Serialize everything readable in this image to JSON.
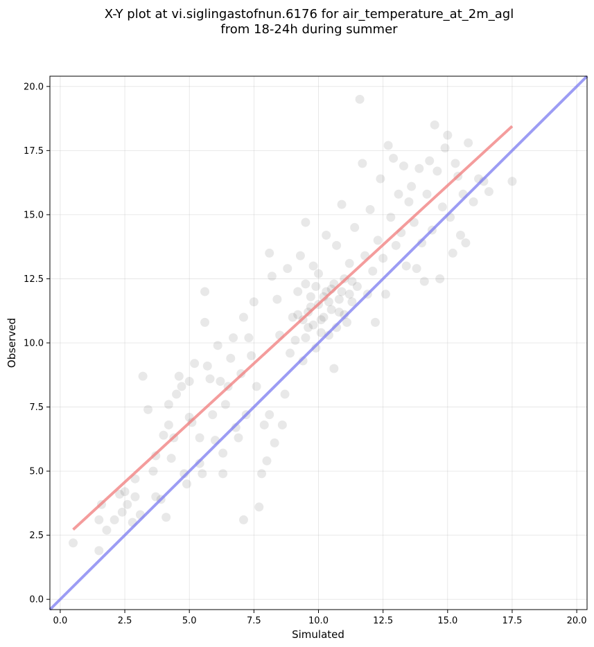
{
  "chart_data": {
    "type": "scatter",
    "title_line1": "X-Y plot at vi.siglingastofnun.6176 for air_temperature_at_2m_agl",
    "title_line2": "from 18-24h during summer",
    "xlabel": "Simulated",
    "ylabel": "Observed",
    "xlim": [
      -0.4,
      20.4
    ],
    "ylim": [
      -0.4,
      20.4
    ],
    "xticks": [
      0.0,
      2.5,
      5.0,
      7.5,
      10.0,
      12.5,
      15.0,
      17.5,
      20.0
    ],
    "yticks": [
      0.0,
      2.5,
      5.0,
      7.5,
      10.0,
      12.5,
      15.0,
      17.5,
      20.0
    ],
    "xtick_labels": [
      "0.0",
      "2.5",
      "5.0",
      "7.5",
      "10.0",
      "12.5",
      "15.0",
      "17.5",
      "20.0"
    ],
    "ytick_labels": [
      "0.0",
      "2.5",
      "5.0",
      "7.5",
      "10.0",
      "12.5",
      "15.0",
      "17.5",
      "20.0"
    ],
    "grid": true,
    "point_color": "#000000",
    "point_alpha": 0.09,
    "series": [
      {
        "points": [
          [
            0.5,
            2.2
          ],
          [
            1.5,
            1.9
          ],
          [
            1.5,
            3.1
          ],
          [
            1.8,
            2.7
          ],
          [
            1.6,
            3.7
          ],
          [
            2.1,
            3.1
          ],
          [
            2.4,
            3.4
          ],
          [
            2.6,
            3.7
          ],
          [
            2.8,
            3.0
          ],
          [
            2.3,
            4.1
          ],
          [
            2.5,
            4.2
          ],
          [
            2.9,
            4.0
          ],
          [
            2.9,
            4.7
          ],
          [
            3.1,
            3.3
          ],
          [
            3.2,
            8.7
          ],
          [
            3.4,
            7.4
          ],
          [
            3.6,
            5.0
          ],
          [
            3.7,
            4.0
          ],
          [
            3.9,
            3.9
          ],
          [
            3.7,
            5.6
          ],
          [
            4.0,
            6.4
          ],
          [
            4.1,
            3.2
          ],
          [
            4.2,
            6.8
          ],
          [
            4.2,
            7.6
          ],
          [
            4.3,
            5.5
          ],
          [
            4.5,
            8.0
          ],
          [
            4.6,
            8.7
          ],
          [
            4.7,
            8.3
          ],
          [
            4.4,
            6.3
          ],
          [
            4.8,
            4.9
          ],
          [
            4.9,
            4.5
          ],
          [
            5.0,
            7.1
          ],
          [
            5.1,
            6.9
          ],
          [
            5.0,
            8.5
          ],
          [
            5.2,
            9.2
          ],
          [
            5.4,
            6.3
          ],
          [
            5.4,
            5.3
          ],
          [
            5.5,
            4.9
          ],
          [
            5.6,
            12.0
          ],
          [
            5.6,
            10.8
          ],
          [
            5.7,
            9.1
          ],
          [
            5.8,
            8.6
          ],
          [
            5.9,
            7.2
          ],
          [
            6.0,
            6.2
          ],
          [
            6.1,
            9.9
          ],
          [
            6.2,
            8.5
          ],
          [
            6.3,
            4.9
          ],
          [
            6.3,
            5.7
          ],
          [
            6.4,
            7.6
          ],
          [
            6.5,
            8.3
          ],
          [
            6.6,
            9.4
          ],
          [
            6.7,
            10.2
          ],
          [
            6.8,
            6.7
          ],
          [
            6.9,
            6.3
          ],
          [
            7.0,
            8.8
          ],
          [
            7.1,
            11.0
          ],
          [
            7.1,
            3.1
          ],
          [
            7.2,
            7.2
          ],
          [
            7.3,
            10.2
          ],
          [
            7.4,
            9.5
          ],
          [
            7.5,
            11.6
          ],
          [
            7.6,
            8.3
          ],
          [
            7.7,
            3.6
          ],
          [
            7.8,
            4.9
          ],
          [
            7.9,
            6.8
          ],
          [
            8.0,
            5.4
          ],
          [
            8.1,
            13.5
          ],
          [
            8.1,
            7.2
          ],
          [
            8.2,
            12.6
          ],
          [
            8.3,
            6.1
          ],
          [
            8.4,
            11.7
          ],
          [
            8.5,
            10.3
          ],
          [
            8.6,
            6.8
          ],
          [
            8.7,
            8.0
          ],
          [
            8.8,
            12.9
          ],
          [
            8.9,
            9.6
          ],
          [
            9.0,
            11.0
          ],
          [
            9.1,
            10.1
          ],
          [
            9.2,
            12.0
          ],
          [
            9.3,
            13.4
          ],
          [
            9.4,
            9.3
          ],
          [
            9.5,
            12.3
          ],
          [
            9.5,
            14.7
          ],
          [
            9.6,
            10.6
          ],
          [
            9.7,
            11.4
          ],
          [
            9.8,
            13.0
          ],
          [
            9.9,
            9.8
          ],
          [
            10.0,
            12.7
          ],
          [
            10.1,
            10.9
          ],
          [
            10.2,
            11.8
          ],
          [
            10.3,
            14.2
          ],
          [
            10.4,
            10.3
          ],
          [
            10.5,
            12.1
          ],
          [
            10.6,
            9.0
          ],
          [
            10.7,
            13.8
          ],
          [
            10.8,
            11.2
          ],
          [
            10.9,
            15.4
          ],
          [
            11.0,
            12.5
          ],
          [
            11.1,
            10.8
          ],
          [
            11.2,
            13.1
          ],
          [
            11.3,
            11.6
          ],
          [
            11.4,
            14.5
          ],
          [
            11.5,
            12.2
          ],
          [
            11.6,
            19.5
          ],
          [
            11.7,
            17.0
          ],
          [
            11.8,
            13.4
          ],
          [
            11.9,
            11.9
          ],
          [
            12.0,
            15.2
          ],
          [
            12.1,
            12.8
          ],
          [
            12.2,
            10.8
          ],
          [
            12.3,
            14.0
          ],
          [
            12.4,
            16.4
          ],
          [
            12.5,
            13.3
          ],
          [
            12.6,
            11.9
          ],
          [
            12.7,
            17.7
          ],
          [
            12.8,
            14.9
          ],
          [
            12.9,
            17.2
          ],
          [
            13.0,
            13.8
          ],
          [
            13.1,
            15.8
          ],
          [
            13.2,
            14.3
          ],
          [
            13.3,
            16.9
          ],
          [
            13.4,
            13.0
          ],
          [
            13.5,
            15.5
          ],
          [
            13.6,
            16.1
          ],
          [
            13.7,
            14.7
          ],
          [
            13.8,
            12.9
          ],
          [
            13.9,
            16.8
          ],
          [
            14.0,
            13.9
          ],
          [
            14.1,
            12.4
          ],
          [
            14.2,
            15.8
          ],
          [
            14.3,
            17.1
          ],
          [
            14.4,
            14.4
          ],
          [
            14.5,
            18.5
          ],
          [
            14.6,
            16.7
          ],
          [
            14.7,
            12.5
          ],
          [
            14.8,
            15.3
          ],
          [
            14.9,
            17.6
          ],
          [
            15.0,
            18.1
          ],
          [
            15.1,
            14.9
          ],
          [
            15.2,
            13.5
          ],
          [
            15.3,
            17.0
          ],
          [
            15.4,
            16.5
          ],
          [
            15.5,
            14.2
          ],
          [
            15.6,
            15.8
          ],
          [
            15.7,
            13.9
          ],
          [
            15.8,
            17.8
          ],
          [
            16.0,
            15.5
          ],
          [
            16.2,
            16.4
          ],
          [
            16.4,
            16.3
          ],
          [
            16.6,
            15.9
          ],
          [
            17.5,
            16.3
          ],
          [
            10.0,
            11.5
          ],
          [
            10.2,
            11.0
          ],
          [
            10.5,
            11.3
          ],
          [
            10.8,
            11.7
          ],
          [
            11.0,
            11.1
          ],
          [
            9.6,
            11.2
          ],
          [
            9.8,
            10.7
          ],
          [
            10.3,
            12.0
          ],
          [
            10.6,
            12.3
          ],
          [
            10.9,
            12.0
          ],
          [
            9.4,
            10.9
          ],
          [
            9.7,
            11.8
          ],
          [
            10.1,
            10.4
          ],
          [
            10.4,
            11.6
          ],
          [
            11.2,
            11.9
          ],
          [
            9.2,
            11.1
          ],
          [
            9.9,
            12.2
          ],
          [
            10.7,
            10.6
          ],
          [
            11.3,
            12.4
          ],
          [
            9.5,
            10.2
          ]
        ]
      }
    ],
    "fit_lines": [
      {
        "color": "#f07b7b",
        "x": [
          0.5,
          17.5
        ],
        "y": [
          2.72,
          18.45
        ]
      },
      {
        "color": "#7b7bf0",
        "x": [
          -0.4,
          20.4
        ],
        "y": [
          -0.4,
          20.4
        ]
      }
    ]
  }
}
